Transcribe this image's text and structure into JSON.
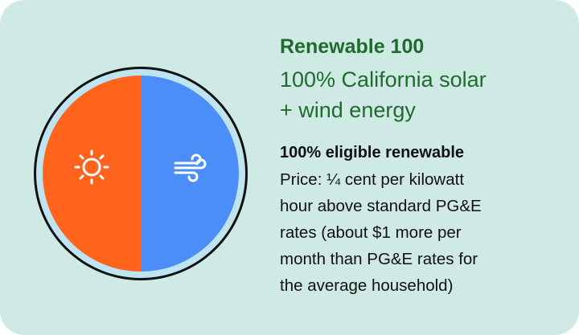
{
  "card": {
    "title": "Renewable 100",
    "subtitle_lines": [
      "100% California solar",
      "+ wind energy"
    ],
    "heading": "100% eligible renewable",
    "description_lines": [
      "Price: ¼ cent per kilowatt",
      "hour above standard PG&E",
      "rates (about $1 more per",
      "month than PG&E rates for",
      "the average household)"
    ]
  }
}
